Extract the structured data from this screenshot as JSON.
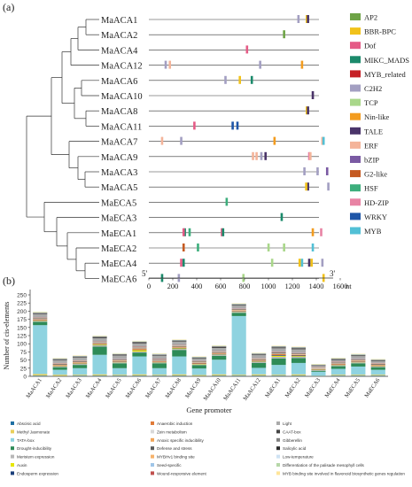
{
  "panel_a_label": "(a)",
  "panel_b_label": "(b)",
  "chart_data": [
    {
      "type": "motif-map",
      "panel": "(a)",
      "genes": [
        "MaACA1",
        "MaACA2",
        "MaACA4",
        "MaACA12",
        "MaACA6",
        "MaACA10",
        "MaACA8",
        "MaACA11",
        "MaACA7",
        "MaACA9",
        "MaACA3",
        "MaACA5",
        "MaECA5",
        "MaECA3",
        "MaECA1",
        "MaECA2",
        "MaECA4",
        "MaECA6"
      ],
      "x_axis": {
        "start_label": "5'",
        "end_label": "3'",
        "ticks": [
          0,
          200,
          400,
          600,
          800,
          1000,
          1200,
          1400,
          1600
        ],
        "unit": "nt",
        "range": [
          0,
          1600
        ]
      },
      "families": [
        {
          "name": "AP2",
          "color": "#6ea346"
        },
        {
          "name": "BBR-BPC",
          "color": "#f1c21b"
        },
        {
          "name": "Dof",
          "color": "#e55b86"
        },
        {
          "name": "MIKC_MADS",
          "color": "#1b8a6b"
        },
        {
          "name": "MYB_related",
          "color": "#c62127"
        },
        {
          "name": "C2H2",
          "color": "#a39fc2"
        },
        {
          "name": "TCP",
          "color": "#a9d78a"
        },
        {
          "name": "Nin-like",
          "color": "#f39c1f"
        },
        {
          "name": "TALE",
          "color": "#4a3469"
        },
        {
          "name": "ERF",
          "color": "#f4b49a"
        },
        {
          "name": "bZIP",
          "color": "#7a5aa3"
        },
        {
          "name": "G2-like",
          "color": "#c55a21"
        },
        {
          "name": "HSF",
          "color": "#3dae7c"
        },
        {
          "name": "HD-ZIP",
          "color": "#e883a4"
        },
        {
          "name": "WRKY",
          "color": "#1f56a8"
        },
        {
          "name": "MYB",
          "color": "#52c0d6"
        }
      ],
      "motifs": [
        {
          "gene": 0,
          "family": "C2H2",
          "pos": 1250
        },
        {
          "gene": 0,
          "family": "BBR-BPC",
          "pos": 1320
        },
        {
          "gene": 0,
          "family": "TALE",
          "pos": 1330
        },
        {
          "gene": 1,
          "family": "AP2",
          "pos": 1130
        },
        {
          "gene": 2,
          "family": "Dof",
          "pos": 820
        },
        {
          "gene": 3,
          "family": "C2H2",
          "pos": 140
        },
        {
          "gene": 3,
          "family": "ERF",
          "pos": 175
        },
        {
          "gene": 3,
          "family": "C2H2",
          "pos": 930
        },
        {
          "gene": 3,
          "family": "Nin-like",
          "pos": 1280
        },
        {
          "gene": 4,
          "family": "C2H2",
          "pos": 640
        },
        {
          "gene": 4,
          "family": "BBR-BPC",
          "pos": 760
        },
        {
          "gene": 4,
          "family": "MIKC_MADS",
          "pos": 860
        },
        {
          "gene": 5,
          "family": "TALE",
          "pos": 1370
        },
        {
          "gene": 6,
          "family": "BBR-BPC",
          "pos": 1320
        },
        {
          "gene": 6,
          "family": "TALE",
          "pos": 1330
        },
        {
          "gene": 7,
          "family": "Dof",
          "pos": 380
        },
        {
          "gene": 7,
          "family": "WRKY",
          "pos": 700
        },
        {
          "gene": 7,
          "family": "WRKY",
          "pos": 740
        },
        {
          "gene": 8,
          "family": "ERF",
          "pos": 110
        },
        {
          "gene": 8,
          "family": "C2H2",
          "pos": 270
        },
        {
          "gene": 8,
          "family": "Nin-like",
          "pos": 1050
        },
        {
          "gene": 8,
          "family": "ERF",
          "pos": 1450
        },
        {
          "gene": 8,
          "family": "MYB",
          "pos": 1460
        },
        {
          "gene": 9,
          "family": "ERF",
          "pos": 870
        },
        {
          "gene": 9,
          "family": "ERF",
          "pos": 900
        },
        {
          "gene": 9,
          "family": "C2H2",
          "pos": 940
        },
        {
          "gene": 9,
          "family": "TALE",
          "pos": 975
        },
        {
          "gene": 9,
          "family": "HD-ZIP",
          "pos": 1340
        },
        {
          "gene": 9,
          "family": "ERF",
          "pos": 1350
        },
        {
          "gene": 10,
          "family": "C2H2",
          "pos": 1300
        },
        {
          "gene": 10,
          "family": "C2H2",
          "pos": 1410
        },
        {
          "gene": 10,
          "family": "bZIP",
          "pos": 1490
        },
        {
          "gene": 11,
          "family": "TALE",
          "pos": 1330
        },
        {
          "gene": 11,
          "family": "BBR-BPC",
          "pos": 1315
        },
        {
          "gene": 11,
          "family": "C2H2",
          "pos": 1500
        },
        {
          "gene": 12,
          "family": "HSF",
          "pos": 650
        },
        {
          "gene": 13,
          "family": "MIKC_MADS",
          "pos": 1110
        },
        {
          "gene": 14,
          "family": "MIKC_MADS",
          "pos": 300
        },
        {
          "gene": 14,
          "family": "HSF",
          "pos": 340
        },
        {
          "gene": 14,
          "family": "Dof",
          "pos": 610
        },
        {
          "gene": 14,
          "family": "Dof",
          "pos": 290
        },
        {
          "gene": 14,
          "family": "MIKC_MADS",
          "pos": 620
        },
        {
          "gene": 14,
          "family": "Nin-like",
          "pos": 1370
        },
        {
          "gene": 14,
          "family": "HD-ZIP",
          "pos": 1440
        },
        {
          "gene": 15,
          "family": "G2-like",
          "pos": 290
        },
        {
          "gene": 15,
          "family": "HSF",
          "pos": 410
        },
        {
          "gene": 15,
          "family": "TCP",
          "pos": 1000
        },
        {
          "gene": 15,
          "family": "TCP",
          "pos": 1130
        },
        {
          "gene": 15,
          "family": "MYB",
          "pos": 1370
        },
        {
          "gene": 16,
          "family": "Dof",
          "pos": 270
        },
        {
          "gene": 16,
          "family": "MIKC_MADS",
          "pos": 290
        },
        {
          "gene": 16,
          "family": "TCP",
          "pos": 1030
        },
        {
          "gene": 16,
          "family": "BBR-BPC",
          "pos": 1260
        },
        {
          "gene": 16,
          "family": "MYB",
          "pos": 1280
        },
        {
          "gene": 16,
          "family": "TALE",
          "pos": 1340
        },
        {
          "gene": 16,
          "family": "BBR-BPC",
          "pos": 1360
        },
        {
          "gene": 16,
          "family": "C2H2",
          "pos": 1450
        },
        {
          "gene": 17,
          "family": "MIKC_MADS",
          "pos": 110
        },
        {
          "gene": 17,
          "family": "C2H2",
          "pos": 250
        },
        {
          "gene": 17,
          "family": "TCP",
          "pos": 790
        },
        {
          "gene": 17,
          "family": "BBR-BPC",
          "pos": 1460
        }
      ]
    },
    {
      "type": "bar",
      "stacked": true,
      "panel": "(b)",
      "xlabel": "Gene promoter",
      "ylabel": "Number of cis-elements",
      "ylim": [
        0,
        250
      ],
      "yticks": [
        0,
        25,
        50,
        75,
        100,
        125,
        150,
        175,
        200,
        225,
        250
      ],
      "categories": [
        "MaACA1",
        "MaACA2",
        "MaACA3",
        "MaACA4",
        "MaACA5",
        "MaACA6",
        "MaACA7",
        "MaACA8",
        "MaACA9",
        "MaACA10",
        "MaACA11",
        "MaACA12",
        "MaECA1",
        "MaECA2",
        "MaECA3",
        "MaECA4",
        "MaECA5",
        "MaECA6"
      ],
      "series": [
        {
          "name": "Abscisic acid",
          "color": "#1f6fa3",
          "values": [
            2,
            1,
            2,
            2,
            2,
            2,
            2,
            2,
            1,
            2,
            2,
            2,
            2,
            2,
            1,
            2,
            2,
            2
          ]
        },
        {
          "name": "Methyl Jasmonate",
          "color": "#e9cf5a",
          "values": [
            5,
            4,
            3,
            4,
            3,
            4,
            3,
            4,
            3,
            4,
            3,
            4,
            3,
            4,
            1,
            3,
            3,
            3
          ]
        },
        {
          "name": "TATA-box",
          "color": "#8fd3e0",
          "values": [
            150,
            15,
            20,
            60,
            20,
            55,
            20,
            55,
            20,
            45,
            180,
            20,
            30,
            35,
            12,
            18,
            25,
            15
          ]
        },
        {
          "name": "Drought-inducibility",
          "color": "#2e8b57",
          "values": [
            10,
            8,
            10,
            25,
            15,
            12,
            15,
            20,
            10,
            12,
            10,
            15,
            20,
            15,
            3,
            8,
            10,
            8
          ]
        },
        {
          "name": "Meristem expression",
          "color": "#b7b7b7",
          "values": [
            3,
            2,
            3,
            4,
            3,
            3,
            2,
            3,
            3,
            3,
            3,
            3,
            5,
            4,
            2,
            3,
            3,
            2
          ]
        },
        {
          "name": "Auxin",
          "color": "#e6e600",
          "values": [
            1,
            1,
            1,
            2,
            1,
            4,
            1,
            2,
            1,
            1,
            1,
            1,
            3,
            2,
            1,
            1,
            1,
            1
          ]
        },
        {
          "name": "Endosperm expression",
          "color": "#1a3e7a",
          "values": [
            1,
            1,
            1,
            1,
            1,
            1,
            1,
            1,
            1,
            1,
            1,
            1,
            2,
            2,
            1,
            1,
            1,
            1
          ]
        },
        {
          "name": "Anaerobic induction",
          "color": "#e07b39",
          "values": [
            2,
            2,
            2,
            2,
            2,
            3,
            2,
            2,
            2,
            2,
            2,
            2,
            3,
            2,
            1,
            2,
            2,
            2
          ]
        },
        {
          "name": "Zein metabolism",
          "color": "#d9d9d9",
          "values": [
            1,
            1,
            1,
            1,
            1,
            1,
            1,
            1,
            1,
            1,
            1,
            1,
            1,
            1,
            1,
            1,
            1,
            1
          ]
        },
        {
          "name": "Anoxic specific inducibility",
          "color": "#f2a65a",
          "values": [
            1,
            1,
            1,
            1,
            1,
            1,
            1,
            1,
            1,
            1,
            1,
            1,
            1,
            1,
            1,
            1,
            1,
            1
          ]
        },
        {
          "name": "Defense and stress",
          "color": "#5a5a5a",
          "values": [
            2,
            2,
            2,
            2,
            2,
            2,
            2,
            2,
            2,
            2,
            2,
            2,
            3,
            2,
            1,
            2,
            2,
            2
          ]
        },
        {
          "name": "MYBHv1 binding site",
          "color": "#f6b26b",
          "values": [
            1,
            1,
            1,
            1,
            1,
            1,
            1,
            1,
            1,
            1,
            1,
            1,
            1,
            1,
            1,
            1,
            1,
            1
          ]
        },
        {
          "name": "Seed-specific",
          "color": "#9fc5e8",
          "values": [
            1,
            1,
            1,
            1,
            1,
            1,
            1,
            1,
            1,
            1,
            1,
            1,
            1,
            1,
            1,
            1,
            1,
            1
          ]
        },
        {
          "name": "Wound-responsive element",
          "color": "#c0504d",
          "values": [
            1,
            1,
            1,
            1,
            1,
            1,
            1,
            1,
            1,
            1,
            1,
            1,
            1,
            1,
            1,
            1,
            1,
            1
          ]
        },
        {
          "name": "Light",
          "color": "#aaaaaa",
          "values": [
            10,
            8,
            8,
            10,
            10,
            10,
            10,
            10,
            6,
            10,
            8,
            10,
            10,
            10,
            4,
            5,
            8,
            5
          ]
        },
        {
          "name": "CAAT-box",
          "color": "#444444",
          "values": [
            2,
            2,
            2,
            3,
            2,
            3,
            2,
            2,
            2,
            3,
            2,
            2,
            3,
            3,
            1,
            2,
            2,
            2
          ]
        },
        {
          "name": "Gibberellin",
          "color": "#7f7f7f",
          "values": [
            1,
            1,
            1,
            1,
            1,
            1,
            1,
            1,
            1,
            1,
            1,
            1,
            1,
            1,
            1,
            1,
            1,
            1
          ]
        },
        {
          "name": "Salicylic acid",
          "color": "#2b2b2b",
          "values": [
            1,
            1,
            1,
            1,
            1,
            1,
            1,
            1,
            1,
            1,
            1,
            1,
            1,
            1,
            1,
            1,
            1,
            1
          ]
        },
        {
          "name": "Low-temperature",
          "color": "#cfe2f3",
          "values": [
            1,
            1,
            1,
            1,
            1,
            1,
            1,
            1,
            1,
            1,
            1,
            1,
            1,
            1,
            1,
            1,
            1,
            1
          ]
        },
        {
          "name": "Differentiation of the palisade mesophyll cells",
          "color": "#b6d7a8",
          "values": [
            1,
            1,
            1,
            1,
            1,
            1,
            1,
            1,
            1,
            1,
            1,
            1,
            1,
            1,
            1,
            1,
            1,
            1
          ]
        },
        {
          "name": "MYB binding site involved in flavonoid biosynthetic genes regulation",
          "color": "#ffe599",
          "values": [
            1,
            1,
            1,
            1,
            1,
            1,
            1,
            1,
            1,
            1,
            1,
            1,
            1,
            1,
            1,
            1,
            1,
            1
          ]
        }
      ]
    }
  ]
}
